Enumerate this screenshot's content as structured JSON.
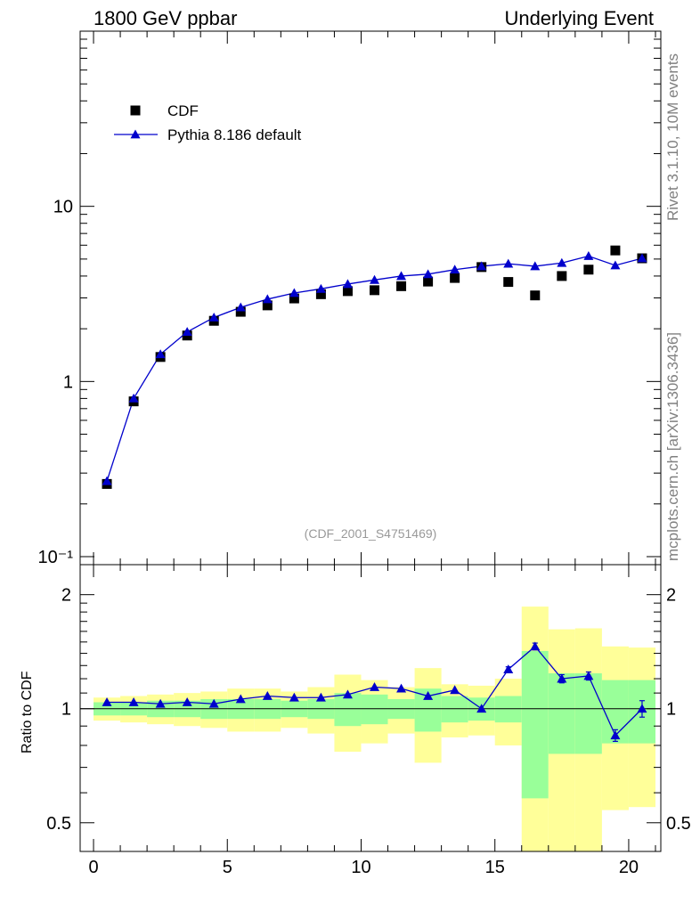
{
  "header": {
    "left": "1800 GeV ppbar",
    "right": "Underlying Event"
  },
  "side_labels": {
    "rivet": "Rivet 3.1.10,  10M events",
    "mcplots": "mcplots.cern.ch [arXiv:1306.3436]"
  },
  "chart_data": [
    {
      "type": "scatter",
      "title": "",
      "xlabel": "",
      "ylabel": "",
      "yscale": "log",
      "xlim": [
        -0.5,
        21.2
      ],
      "ylim": [
        0.09,
        100
      ],
      "yticks": [
        0.1,
        1,
        10
      ],
      "ytick_labels": [
        "10⁻¹",
        "1",
        "10"
      ],
      "watermark": "(CDF_2001_S4751469)",
      "legend": [
        "CDF",
        "Pythia 8.186 default"
      ],
      "legend_position": "top-left",
      "series": [
        {
          "name": "CDF",
          "marker": "square",
          "color": "#000000",
          "x": [
            0.5,
            1.5,
            2.5,
            3.5,
            4.5,
            5.5,
            6.5,
            7.5,
            8.5,
            9.5,
            10.5,
            11.5,
            12.5,
            13.5,
            14.5,
            15.5,
            16.5,
            17.5,
            18.5,
            19.5,
            20.5
          ],
          "y": [
            0.26,
            0.77,
            1.38,
            1.83,
            2.22,
            2.5,
            2.72,
            2.98,
            3.15,
            3.28,
            3.32,
            3.5,
            3.72,
            3.9,
            4.5,
            3.7,
            3.1,
            4.0,
            4.35,
            5.6,
            5.05
          ]
        },
        {
          "name": "Pythia 8.186 default",
          "marker": "triangle",
          "color": "#0000cc",
          "x": [
            0.5,
            1.5,
            2.5,
            3.5,
            4.5,
            5.5,
            6.5,
            7.5,
            8.5,
            9.5,
            10.5,
            11.5,
            12.5,
            13.5,
            14.5,
            15.5,
            16.5,
            17.5,
            18.5,
            19.5,
            20.5
          ],
          "y": [
            0.27,
            0.8,
            1.43,
            1.92,
            2.32,
            2.65,
            2.95,
            3.2,
            3.38,
            3.6,
            3.8,
            4.0,
            4.1,
            4.35,
            4.55,
            4.7,
            4.55,
            4.75,
            5.2,
            4.6,
            5.05
          ]
        }
      ]
    },
    {
      "type": "line",
      "ylabel": "Ratio to CDF",
      "xlabel": "",
      "yscale": "log",
      "xlim": [
        -0.5,
        21.2
      ],
      "ylim": [
        0.42,
        2.4
      ],
      "xticks": [
        0,
        5,
        10,
        15,
        20
      ],
      "yticks": [
        0.5,
        1,
        2
      ],
      "ytick_labels": [
        "0.5",
        "1",
        "2"
      ],
      "reference_line": 1,
      "bands": {
        "x_low": [
          0,
          1,
          2,
          3,
          4,
          5,
          6,
          7,
          8,
          9,
          10,
          11,
          12,
          13,
          14,
          15,
          16,
          17,
          18,
          19,
          20
        ],
        "x_high": [
          1,
          2,
          3,
          4,
          5,
          6,
          7,
          8,
          9,
          10,
          11,
          12,
          13,
          14,
          15,
          16,
          17,
          18,
          19,
          20,
          21
        ],
        "green_low": [
          0.96,
          0.96,
          0.95,
          0.95,
          0.94,
          0.94,
          0.94,
          0.95,
          0.94,
          0.9,
          0.91,
          0.94,
          0.87,
          0.92,
          0.93,
          0.92,
          0.58,
          0.76,
          0.76,
          0.81,
          0.81
        ],
        "green_high": [
          1.04,
          1.04,
          1.05,
          1.05,
          1.06,
          1.06,
          1.06,
          1.05,
          1.06,
          1.1,
          1.09,
          1.06,
          1.13,
          1.08,
          1.07,
          1.08,
          1.42,
          1.24,
          1.24,
          1.19,
          1.19
        ],
        "yellow_low": [
          0.93,
          0.92,
          0.91,
          0.9,
          0.89,
          0.87,
          0.87,
          0.89,
          0.86,
          0.77,
          0.81,
          0.86,
          0.72,
          0.84,
          0.85,
          0.8,
          0.3,
          0.38,
          0.37,
          0.54,
          0.55
        ],
        "yellow_high": [
          1.07,
          1.08,
          1.09,
          1.1,
          1.11,
          1.13,
          1.13,
          1.11,
          1.14,
          1.23,
          1.19,
          1.14,
          1.28,
          1.16,
          1.15,
          1.2,
          1.86,
          1.62,
          1.63,
          1.46,
          1.45
        ]
      },
      "series": [
        {
          "name": "Pythia 8.186 default / CDF",
          "color": "#0000cc",
          "x": [
            0.5,
            1.5,
            2.5,
            3.5,
            4.5,
            5.5,
            6.5,
            7.5,
            8.5,
            9.5,
            10.5,
            11.5,
            12.5,
            13.5,
            14.5,
            15.5,
            16.5,
            17.5,
            18.5,
            19.5,
            20.5
          ],
          "y": [
            1.04,
            1.04,
            1.03,
            1.04,
            1.03,
            1.06,
            1.08,
            1.07,
            1.07,
            1.09,
            1.14,
            1.13,
            1.08,
            1.12,
            1.0,
            1.27,
            1.46,
            1.2,
            1.22,
            0.85,
            1.0
          ],
          "err": [
            0.01,
            0.01,
            0.01,
            0.01,
            0.01,
            0.01,
            0.01,
            0.01,
            0.01,
            0.01,
            0.01,
            0.01,
            0.01,
            0.01,
            0.01,
            0.02,
            0.03,
            0.03,
            0.03,
            0.03,
            0.05
          ]
        }
      ]
    }
  ]
}
